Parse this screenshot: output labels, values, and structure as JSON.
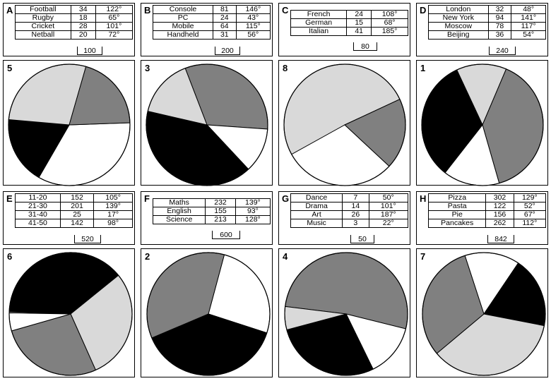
{
  "tables": [
    {
      "letter": "A",
      "total": "100",
      "rows": [
        {
          "label": "Football",
          "value": "34",
          "angle": "122°"
        },
        {
          "label": "Rugby",
          "value": "18",
          "angle": "65°"
        },
        {
          "label": "Cricket",
          "value": "28",
          "angle": "101°"
        },
        {
          "label": "Netball",
          "value": "20",
          "angle": "72°"
        }
      ]
    },
    {
      "letter": "B",
      "total": "200",
      "rows": [
        {
          "label": "Console",
          "value": "81",
          "angle": "146°"
        },
        {
          "label": "PC",
          "value": "24",
          "angle": "43°"
        },
        {
          "label": "Mobile",
          "value": "64",
          "angle": "115°"
        },
        {
          "label": "Handheld",
          "value": "31",
          "angle": "56°"
        }
      ]
    },
    {
      "letter": "C",
      "total": "80",
      "rows": [
        {
          "label": "French",
          "value": "24",
          "angle": "108°"
        },
        {
          "label": "German",
          "value": "15",
          "angle": "68°"
        },
        {
          "label": "Italian",
          "value": "41",
          "angle": "185°"
        }
      ]
    },
    {
      "letter": "D",
      "total": "240",
      "rows": [
        {
          "label": "London",
          "value": "32",
          "angle": "48°"
        },
        {
          "label": "New York",
          "value": "94",
          "angle": "141°"
        },
        {
          "label": "Moscow",
          "value": "78",
          "angle": "117°"
        },
        {
          "label": "Beijing",
          "value": "36",
          "angle": "54°"
        }
      ]
    },
    {
      "letter": "E",
      "total": "520",
      "rows": [
        {
          "label": "11-20",
          "value": "152",
          "angle": "105°"
        },
        {
          "label": "21-30",
          "value": "201",
          "angle": "139°"
        },
        {
          "label": "31-40",
          "value": "25",
          "angle": "17°"
        },
        {
          "label": "41-50",
          "value": "142",
          "angle": "98°"
        }
      ]
    },
    {
      "letter": "F",
      "total": "600",
      "rows": [
        {
          "label": "Maths",
          "value": "232",
          "angle": "139°"
        },
        {
          "label": "English",
          "value": "155",
          "angle": "93°"
        },
        {
          "label": "Science",
          "value": "213",
          "angle": "128°"
        }
      ]
    },
    {
      "letter": "G",
      "total": "50",
      "rows": [
        {
          "label": "Dance",
          "value": "7",
          "angle": "50°"
        },
        {
          "label": "Drama",
          "value": "14",
          "angle": "101°"
        },
        {
          "label": "Art",
          "value": "26",
          "angle": "187°"
        },
        {
          "label": "Music",
          "value": "3",
          "angle": "22°"
        }
      ]
    },
    {
      "letter": "H",
      "total": "842",
      "rows": [
        {
          "label": "Pizza",
          "value": "302",
          "angle": "129°"
        },
        {
          "label": "Pasta",
          "value": "122",
          "angle": "52°"
        },
        {
          "label": "Pie",
          "value": "156",
          "angle": "67°"
        },
        {
          "label": "Pancakes",
          "value": "262",
          "angle": "112°"
        }
      ]
    }
  ],
  "pies": [
    {
      "number": "5",
      "slices": [
        {
          "angle": 122,
          "color": "#ffffff"
        },
        {
          "angle": 65,
          "color": "#000000"
        },
        {
          "angle": 101,
          "color": "#d9d9d9"
        },
        {
          "angle": 72,
          "color": "#808080"
        }
      ]
    },
    {
      "number": "3",
      "slices": [
        {
          "angle": 115,
          "color": "#808080"
        },
        {
          "angle": 43,
          "color": "#ffffff"
        },
        {
          "angle": 146,
          "color": "#000000"
        },
        {
          "angle": 56,
          "color": "#d9d9d9"
        }
      ]
    },
    {
      "number": "8",
      "slices": [
        {
          "angle": 185,
          "color": "#d9d9d9"
        },
        {
          "angle": 68,
          "color": "#808080"
        },
        {
          "angle": 108,
          "color": "#ffffff"
        }
      ]
    },
    {
      "number": "1",
      "slices": [
        {
          "angle": 48,
          "color": "#d9d9d9"
        },
        {
          "angle": 141,
          "color": "#808080"
        },
        {
          "angle": 54,
          "color": "#ffffff"
        },
        {
          "angle": 117,
          "color": "#000000"
        }
      ]
    },
    {
      "number": "6",
      "slices": [
        {
          "angle": 139,
          "color": "#000000"
        },
        {
          "angle": 105,
          "color": "#d9d9d9"
        },
        {
          "angle": 98,
          "color": "#808080"
        },
        {
          "angle": 17,
          "color": "#ffffff"
        }
      ]
    },
    {
      "number": "2",
      "slices": [
        {
          "angle": 93,
          "color": "#ffffff"
        },
        {
          "angle": 139,
          "color": "#000000"
        },
        {
          "angle": 128,
          "color": "#808080"
        }
      ]
    },
    {
      "number": "4",
      "slices": [
        {
          "angle": 187,
          "color": "#808080"
        },
        {
          "angle": 50,
          "color": "#ffffff"
        },
        {
          "angle": 101,
          "color": "#000000"
        },
        {
          "angle": 22,
          "color": "#d9d9d9"
        }
      ]
    },
    {
      "number": "7",
      "slices": [
        {
          "angle": 52,
          "color": "#ffffff"
        },
        {
          "angle": 67,
          "color": "#000000"
        },
        {
          "angle": 129,
          "color": "#d9d9d9"
        },
        {
          "angle": 112,
          "color": "#808080"
        }
      ]
    }
  ]
}
